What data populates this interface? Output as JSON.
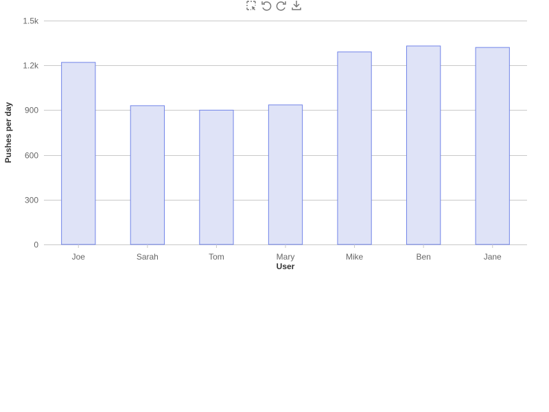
{
  "toolbar": {
    "icons": [
      "box-zoom-icon",
      "undo-icon",
      "redo-icon",
      "download-icon"
    ]
  },
  "colors": {
    "bar_fill": "#dfe3f7",
    "bar_stroke": "#7083e8",
    "grid": "#c8c8c8",
    "axis_text": "#666666",
    "title_text": "#333333"
  },
  "chart_data": {
    "type": "bar",
    "categories": [
      "Joe",
      "Sarah",
      "Tom",
      "Mary",
      "Mike",
      "Ben",
      "Jane"
    ],
    "values": [
      1220,
      930,
      900,
      935,
      1290,
      1330,
      1320
    ],
    "xlabel": "User",
    "ylabel": "Pushes per day",
    "ylim": [
      0,
      1500
    ],
    "yticks": [
      0,
      300,
      600,
      900,
      1200,
      1500
    ],
    "ytick_labels": [
      "0",
      "300",
      "600",
      "900",
      "1.2k",
      "1.5k"
    ],
    "grid": true,
    "legend": false
  }
}
